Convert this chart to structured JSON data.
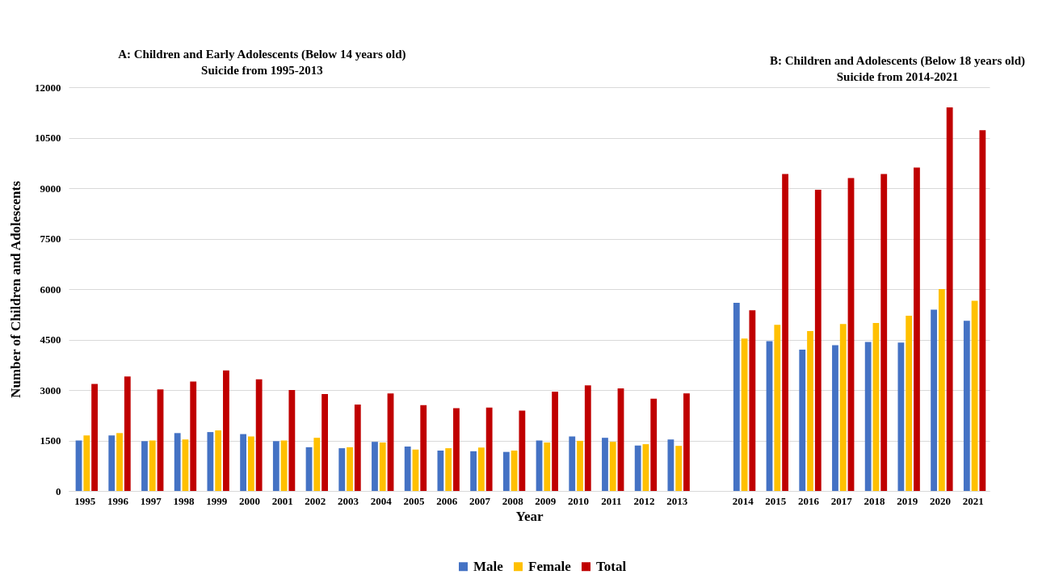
{
  "chart_data": {
    "type": "bar",
    "annotations": [
      "A: Children and Early Adolescents (Below 14 years old)\nSuicide from 1995-2013",
      "B: Children and Adolescents  (Below 18 years old)\nSuicide from 2014-2021"
    ],
    "xlabel": "Year",
    "ylabel": "Number of Children and Adolescents",
    "categories": [
      "1995",
      "1996",
      "1997",
      "1998",
      "1999",
      "2000",
      "2001",
      "2002",
      "2003",
      "2004",
      "2005",
      "2006",
      "2007",
      "2008",
      "2009",
      "2010",
      "2011",
      "2012",
      "2013",
      null,
      "2014",
      "2015",
      "2016",
      "2017",
      "2018",
      "2019",
      "2020",
      "2021"
    ],
    "series": [
      {
        "name": "Male",
        "color": "#4472c4",
        "values": [
          1500,
          1650,
          1480,
          1720,
          1750,
          1690,
          1480,
          1300,
          1270,
          1460,
          1320,
          1200,
          1180,
          1160,
          1500,
          1620,
          1580,
          1350,
          1530,
          null,
          5590,
          4450,
          4200,
          4330,
          4430,
          4410,
          5390,
          5060
        ]
      },
      {
        "name": "Female",
        "color": "#ffc000",
        "values": [
          1650,
          1720,
          1500,
          1530,
          1800,
          1620,
          1500,
          1580,
          1300,
          1440,
          1230,
          1270,
          1290,
          1200,
          1440,
          1490,
          1460,
          1390,
          1340,
          null,
          4530,
          4940,
          4750,
          4960,
          4990,
          5210,
          6000,
          5650
        ]
      },
      {
        "name": "Total",
        "color": "#c00000",
        "values": [
          3180,
          3400,
          3020,
          3250,
          3580,
          3320,
          3000,
          2880,
          2570,
          2900,
          2550,
          2460,
          2480,
          2390,
          2950,
          3140,
          3050,
          2740,
          2900,
          null,
          5370,
          9420,
          8950,
          9300,
          9420,
          9610,
          11400,
          10720
        ]
      }
    ],
    "ylim": [
      0,
      12000
    ],
    "yticks": [
      0,
      1500,
      3000,
      4500,
      6000,
      7500,
      9000,
      10500,
      12000
    ],
    "grid": "y",
    "legend": "bottom"
  }
}
